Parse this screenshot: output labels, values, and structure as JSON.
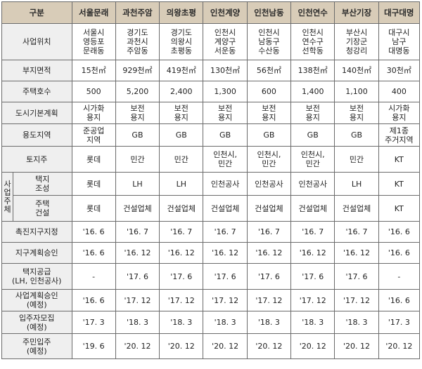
{
  "header": {
    "label": "구분",
    "sites": [
      "서울문래",
      "과천주암",
      "의왕초평",
      "인천계양",
      "인천남동",
      "인천연수",
      "부산기장",
      "대구대명"
    ]
  },
  "rows": {
    "location": {
      "label": "사업위치",
      "values": [
        "서울시\n영등포\n문래동",
        "경기도\n과천시\n주암동",
        "경기도\n의왕시\n초평동",
        "인천시\n계양구\n서운동",
        "인천시\n남동구\n수산동",
        "인천시\n연수구\n선학동",
        "부산시\n기장군\n청강리",
        "대구시\n남구\n대명동"
      ]
    },
    "area": {
      "label": "부지면적",
      "values": [
        "15천㎡",
        "929천㎡",
        "419천㎡",
        "130천㎡",
        "56천㎡",
        "138천㎡",
        "140천㎡",
        "30천㎡"
      ]
    },
    "houses": {
      "label": "주택호수",
      "values": [
        "500",
        "5,200",
        "2,400",
        "1,300",
        "600",
        "1,400",
        "1,100",
        "400"
      ]
    },
    "urban_plan": {
      "label": "도시기본계획",
      "values": [
        "시가화\n용지",
        "보전\n용지",
        "보전\n용지",
        "보전\n용지",
        "보전\n용지",
        "보전\n용지",
        "보전\n용지",
        "시가화\n용지"
      ]
    },
    "zoning": {
      "label": "용도지역",
      "values": [
        "준공업\n지역",
        "GB",
        "GB",
        "GB",
        "GB",
        "GB",
        "GB",
        "제1종\n주거지역"
      ]
    },
    "land_owner": {
      "label": "토지주",
      "values": [
        "롯데",
        "민간",
        "민간",
        "인천시,\n민간",
        "인천시,\n민간",
        "인천시,\n민간",
        "민간",
        "KT"
      ]
    },
    "operator": {
      "label": "사\n업\n주\n체",
      "land": {
        "label": "택지\n조성",
        "values": [
          "롯데",
          "LH",
          "LH",
          "인천공사",
          "인천공사",
          "인천공사",
          "LH",
          "KT"
        ]
      },
      "build": {
        "label": "주택\n건설",
        "values": [
          "롯데",
          "건설업체",
          "건설업체",
          "건설업체",
          "건설업체",
          "건설업체",
          "건설업체",
          "KT"
        ]
      }
    },
    "promo_zone": {
      "label": "촉진지구지정",
      "values": [
        "'16. 6",
        "'16. 7",
        "'16. 7",
        "'16. 7",
        "'16. 7",
        "'16. 7",
        "'16. 7",
        "'16. 6"
      ]
    },
    "district_plan": {
      "label": "지구계획승인",
      "values": [
        "'16. 6",
        "'16. 12",
        "'16. 12",
        "'16. 12",
        "'16. 12",
        "'16. 12",
        "'16. 12",
        "'16. 6"
      ]
    },
    "land_supply": {
      "label": "택지공급\n(LH, 인천공사)",
      "values": [
        "-",
        "'17. 6",
        "'17. 6",
        "'17. 6",
        "'17. 6",
        "'17. 6",
        "'17. 6",
        "-"
      ]
    },
    "project_approval": {
      "label": "사업계획승인\n(예정)",
      "values": [
        "'16. 6",
        "'17. 12",
        "'17. 12",
        "'17. 12",
        "'17. 12",
        "'17. 12",
        "'17. 12",
        "'16. 6"
      ]
    },
    "recruitment": {
      "label": "입주자모집\n(예정)",
      "values": [
        "'17. 3",
        "'18. 3",
        "'18. 3",
        "'18. 3",
        "'18. 3",
        "'18. 3",
        "'18. 3",
        "'17. 3"
      ]
    },
    "move_in": {
      "label": "주민입주\n(예정)",
      "values": [
        "'19. 6",
        "'20. 12",
        "'20. 12",
        "'20. 12",
        "'20. 12",
        "'20. 12",
        "'20. 12",
        "'20. 12"
      ]
    }
  }
}
